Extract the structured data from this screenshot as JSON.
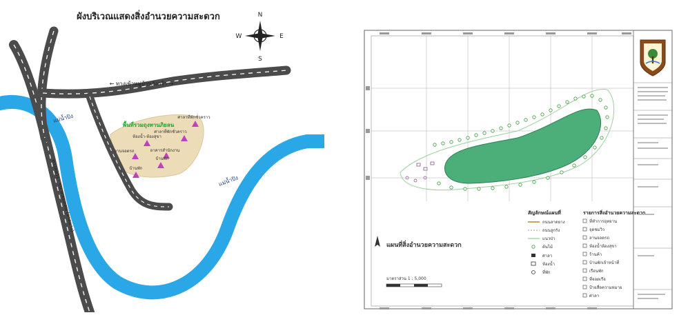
{
  "left_map": {
    "title": "ผังบริเวณแสดงสิ่งอำนวยความสะดวก",
    "compass": {
      "n": "N",
      "e": "E",
      "s": "S",
      "w": "W"
    },
    "road_label": "← ทางเข้าหมู่บ้านวังกว้า →",
    "area_label": "พื้นที่รวมถุงทานภิยลน",
    "facilities": [
      {
        "label": "ศาลาที่พักชั่วคราว"
      },
      {
        "label": "ศาลาที่พักชั่วคราว"
      },
      {
        "label": "ห้องน้ำ-ห้องสุขา"
      },
      {
        "label": "ลานจอดรถ"
      },
      {
        "label": "อาคารสำนักงาน"
      },
      {
        "label": "บ้านพัก"
      },
      {
        "label": "บ้านพัก"
      }
    ],
    "river_label_1": "แม่น้ำปิง",
    "river_label_2": "แม่น้ำปิง",
    "highway_label": "ทางหลวง - ขนาดสองเลน (ลาดยาง)",
    "colors": {
      "river": "#2aa7e6",
      "road": "#4b4b4b",
      "area": "#ecdcb8",
      "marker": "#c040c0",
      "area_label": "#1aa028"
    }
  },
  "right_map": {
    "legend_title_left": "สัญลักษณ์แผนที่",
    "legend_title_right": "รายการสิ่งอำนวยความสะดวก",
    "legend_left": [
      "ถนนลาดยาง",
      "ถนนลูกรัง",
      "แนวป่า",
      "ต้นไม้",
      "ศาลา",
      "ห้องน้ำ",
      "ที่พัก"
    ],
    "legend_right": [
      "ที่ทำการอุทยาน",
      "จุดชมวิว",
      "ลานจอดรถ",
      "ห้องน้ำห้องสุขา",
      "ร้านค้า",
      "บ้านพักเจ้าหน้าที่",
      "เรือนพัก",
      "ที่จอดเรือ",
      "ป้ายสื่อความหมาย",
      "ศาลา"
    ],
    "map_title": "แผนที่สิ่งอำนวยความสะดวก",
    "scale": "มาตราส่วน 1 : 5,000",
    "colors": {
      "lake": "#4caf7a",
      "frame": "#666666"
    }
  }
}
